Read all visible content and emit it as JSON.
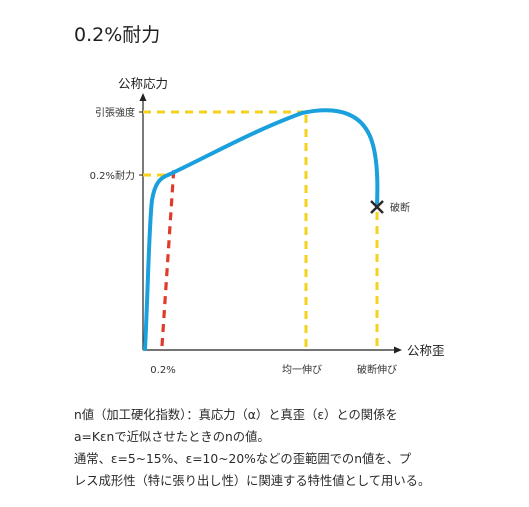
{
  "title": "0.2%耐力",
  "axes": {
    "y_label": "公称応力",
    "x_label": "公称歪"
  },
  "y_ticks": {
    "tensile_strength": "引張強度",
    "proof_stress": "0.2%耐力"
  },
  "x_ticks": {
    "offset": "0.2%",
    "uniform_elongation": "均一伸び",
    "fracture_elongation": "破断伸び"
  },
  "annotations": {
    "fracture": "破断"
  },
  "description": {
    "line1": "n値（加工硬化指数）：真応力（α）と真歪（ε）との関係を",
    "line2": "a=Kεnで近似させたときのnの値。",
    "line3": "通常、ε=5~15%、ε=10~20%などの歪範囲でのn値を、プ",
    "line4": "レス成形性（特に張り出し性）に関連する特性値として用いる。"
  },
  "colors": {
    "curve": "#1aa0dc",
    "offset_line": "#e03a2a",
    "guide_lines": "#f5d21c",
    "axes": "#222222"
  }
}
